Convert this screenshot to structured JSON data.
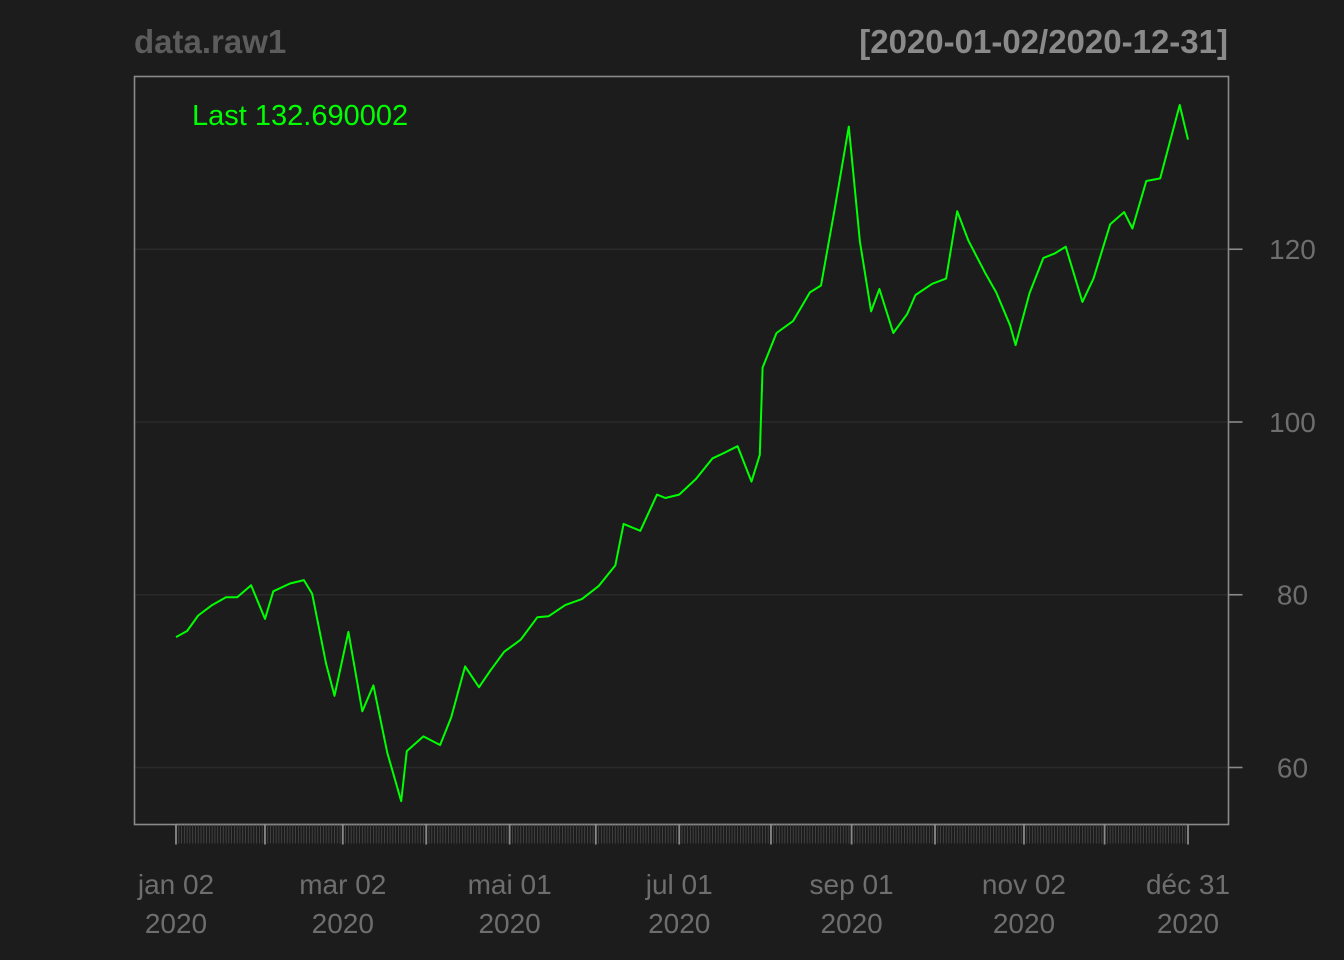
{
  "chart_data": {
    "type": "line",
    "title": "data.raw1",
    "subtitle": "[2020-01-02/2020-12-31]",
    "legend_text": "Last 132.690002",
    "xlabel": "",
    "ylabel": "",
    "x_tick_labels": [
      {
        "date": "2020-01-02",
        "line1": "jan 02",
        "line2": "2020"
      },
      {
        "date": "2020-03-02",
        "line1": "mar 02",
        "line2": "2020"
      },
      {
        "date": "2020-05-01",
        "line1": "mai 01",
        "line2": "2020"
      },
      {
        "date": "2020-07-01",
        "line1": "jul 01",
        "line2": "2020"
      },
      {
        "date": "2020-09-01",
        "line1": "sep 01",
        "line2": "2020"
      },
      {
        "date": "2020-11-02",
        "line1": "nov 02",
        "line2": "2020"
      },
      {
        "date": "2020-12-31",
        "line1": "déc 31",
        "line2": "2020"
      }
    ],
    "y_ticks": [
      60,
      80,
      100,
      120
    ],
    "ylim": [
      53.4,
      140
    ],
    "xlim": [
      "2020-01-02",
      "2020-12-31"
    ],
    "grid": true,
    "legend_position": "top-left",
    "colors": {
      "background": "#1c1c1c",
      "series": "#00ff00",
      "axis": "#8a8a8a",
      "grid": "#2a2a2a",
      "title": "#5c5c5c",
      "subtitle": "#8a8a8a",
      "tick_text": "#6e6e6e"
    },
    "series": [
      {
        "x": [
          "2020-01-02",
          "2020-01-06",
          "2020-01-10",
          "2020-01-15",
          "2020-01-20",
          "2020-01-24",
          "2020-01-29",
          "2020-02-03",
          "2020-02-06",
          "2020-02-12",
          "2020-02-17",
          "2020-02-20",
          "2020-02-25",
          "2020-02-28",
          "2020-03-04",
          "2020-03-09",
          "2020-03-13",
          "2020-03-18",
          "2020-03-23",
          "2020-03-25",
          "2020-03-31",
          "2020-04-06",
          "2020-04-10",
          "2020-04-15",
          "2020-04-20",
          "2020-04-24",
          "2020-04-29",
          "2020-05-05",
          "2020-05-11",
          "2020-05-15",
          "2020-05-21",
          "2020-05-27",
          "2020-06-02",
          "2020-06-08",
          "2020-06-11",
          "2020-06-17",
          "2020-06-23",
          "2020-06-26",
          "2020-07-01",
          "2020-07-07",
          "2020-07-13",
          "2020-07-17",
          "2020-07-22",
          "2020-07-27",
          "2020-07-30",
          "2020-07-31",
          "2020-08-05",
          "2020-08-11",
          "2020-08-17",
          "2020-08-21",
          "2020-08-26",
          "2020-08-31",
          "2020-09-04",
          "2020-09-08",
          "2020-09-11",
          "2020-09-16",
          "2020-09-21",
          "2020-09-24",
          "2020-09-30",
          "2020-10-05",
          "2020-10-09",
          "2020-10-13",
          "2020-10-19",
          "2020-10-23",
          "2020-10-28",
          "2020-10-30",
          "2020-11-04",
          "2020-11-09",
          "2020-11-13",
          "2020-11-17",
          "2020-11-23",
          "2020-11-27",
          "2020-12-03",
          "2020-12-08",
          "2020-12-11",
          "2020-12-16",
          "2020-12-21",
          "2020-12-28",
          "2020-12-31"
        ],
        "y": [
          75.1,
          75.8,
          77.6,
          78.8,
          79.7,
          79.7,
          81.1,
          77.2,
          80.4,
          81.3,
          81.7,
          80.1,
          72.0,
          68.3,
          75.7,
          66.5,
          69.5,
          61.7,
          56.1,
          61.9,
          63.6,
          62.6,
          65.8,
          71.7,
          69.3,
          71.2,
          73.4,
          74.8,
          77.4,
          77.5,
          78.8,
          79.5,
          81.0,
          83.4,
          88.2,
          87.4,
          91.6,
          91.2,
          91.6,
          93.4,
          95.8,
          96.4,
          97.2,
          93.1,
          96.2,
          106.3,
          110.3,
          111.7,
          115.0,
          115.8,
          124.8,
          134.2,
          120.9,
          112.8,
          115.4,
          110.3,
          112.5,
          114.7,
          116.0,
          116.6,
          124.4,
          121.0,
          117.3,
          115.0,
          111.2,
          108.9,
          114.9,
          119.0,
          119.5,
          120.3,
          113.9,
          116.6,
          122.9,
          124.3,
          122.4,
          127.9,
          128.2,
          136.7,
          132.7
        ]
      }
    ]
  }
}
